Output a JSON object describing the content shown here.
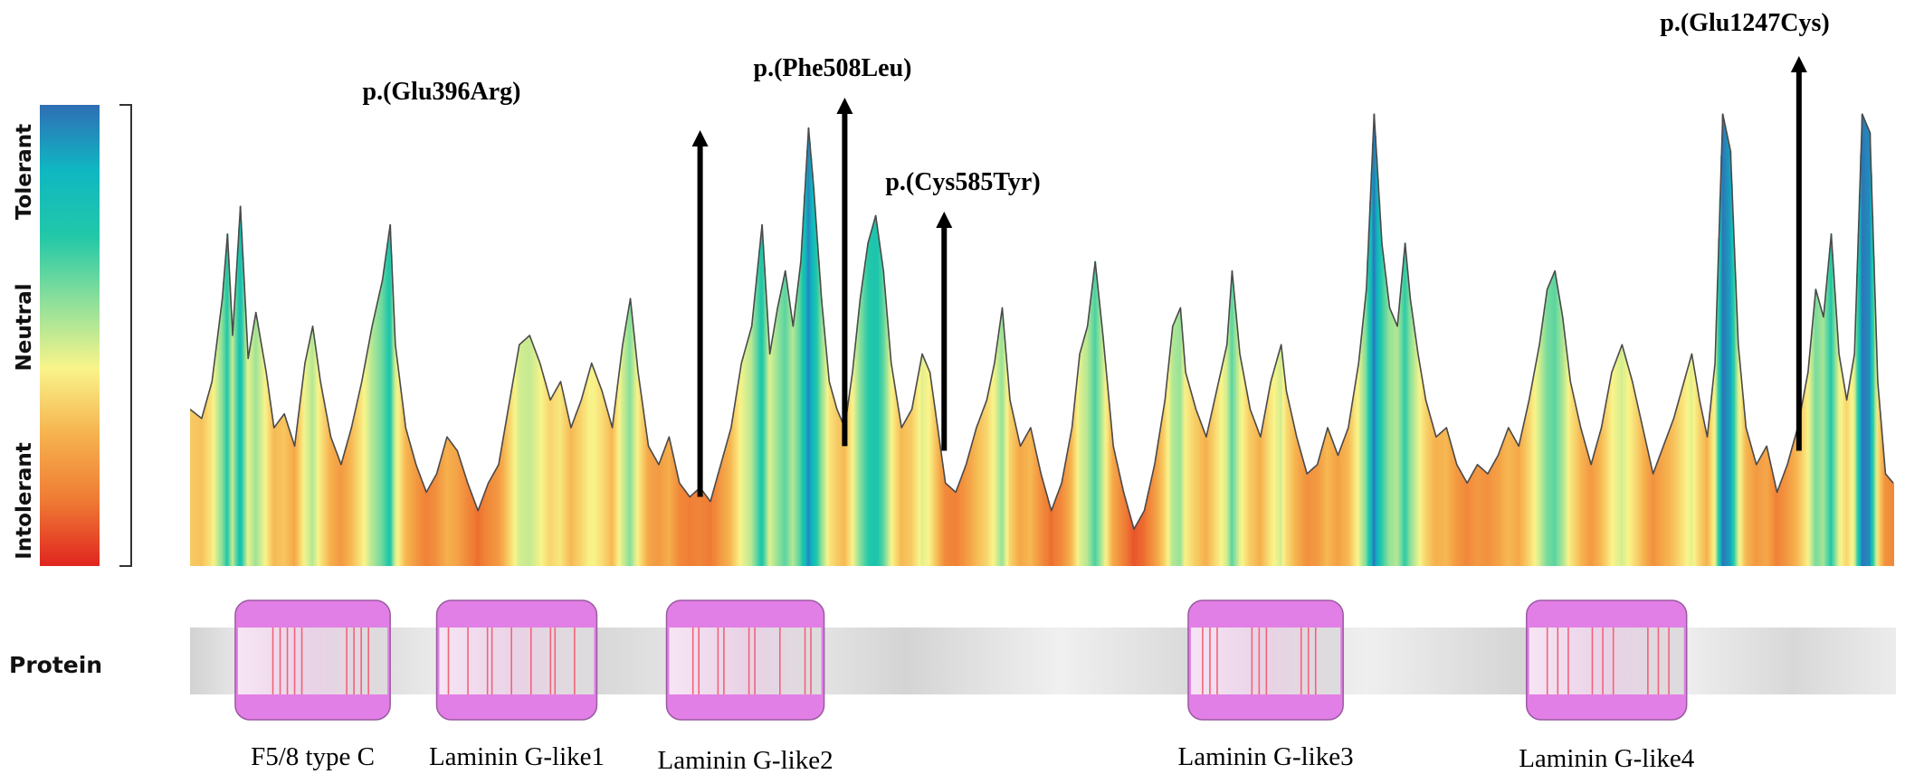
{
  "chart_data": {
    "type": "area",
    "title": "",
    "xlabel": "",
    "ylabel": "",
    "color_scale": {
      "labels": [
        "Tolerant",
        "Neutral",
        "Intolerant"
      ],
      "colors": [
        "#2f6eb5",
        "#0fb7c2",
        "#22c8a8",
        "#8fe09a",
        "#f9f48a",
        "#f6b24e",
        "#ef7b34",
        "#e0251f"
      ]
    },
    "protein_length": 1320,
    "track_label": "Protein",
    "tolerance_profile": {
      "residue_start": 1,
      "residue_end": 1320,
      "y_range": [
        0,
        1
      ],
      "points": [
        [
          1,
          0.34
        ],
        [
          10,
          0.32
        ],
        [
          18,
          0.4
        ],
        [
          26,
          0.58
        ],
        [
          30,
          0.72
        ],
        [
          34,
          0.5
        ],
        [
          40,
          0.78
        ],
        [
          46,
          0.45
        ],
        [
          52,
          0.55
        ],
        [
          60,
          0.42
        ],
        [
          66,
          0.3
        ],
        [
          74,
          0.33
        ],
        [
          82,
          0.26
        ],
        [
          90,
          0.44
        ],
        [
          96,
          0.52
        ],
        [
          102,
          0.4
        ],
        [
          110,
          0.28
        ],
        [
          118,
          0.22
        ],
        [
          126,
          0.3
        ],
        [
          134,
          0.4
        ],
        [
          142,
          0.52
        ],
        [
          150,
          0.62
        ],
        [
          156,
          0.74
        ],
        [
          160,
          0.48
        ],
        [
          168,
          0.3
        ],
        [
          176,
          0.22
        ],
        [
          184,
          0.16
        ],
        [
          192,
          0.2
        ],
        [
          200,
          0.28
        ],
        [
          208,
          0.25
        ],
        [
          216,
          0.18
        ],
        [
          224,
          0.12
        ],
        [
          232,
          0.18
        ],
        [
          240,
          0.22
        ],
        [
          248,
          0.35
        ],
        [
          256,
          0.48
        ],
        [
          264,
          0.5
        ],
        [
          272,
          0.44
        ],
        [
          280,
          0.36
        ],
        [
          288,
          0.4
        ],
        [
          296,
          0.3
        ],
        [
          304,
          0.36
        ],
        [
          312,
          0.44
        ],
        [
          320,
          0.38
        ],
        [
          328,
          0.3
        ],
        [
          336,
          0.48
        ],
        [
          342,
          0.58
        ],
        [
          348,
          0.42
        ],
        [
          356,
          0.26
        ],
        [
          364,
          0.22
        ],
        [
          372,
          0.28
        ],
        [
          380,
          0.18
        ],
        [
          388,
          0.15
        ],
        [
          396,
          0.17
        ],
        [
          404,
          0.14
        ],
        [
          412,
          0.22
        ],
        [
          420,
          0.3
        ],
        [
          428,
          0.44
        ],
        [
          436,
          0.52
        ],
        [
          444,
          0.74
        ],
        [
          450,
          0.46
        ],
        [
          456,
          0.56
        ],
        [
          462,
          0.64
        ],
        [
          468,
          0.52
        ],
        [
          474,
          0.66
        ],
        [
          480,
          0.95
        ],
        [
          484,
          0.82
        ],
        [
          490,
          0.58
        ],
        [
          496,
          0.4
        ],
        [
          502,
          0.34
        ],
        [
          508,
          0.3
        ],
        [
          514,
          0.42
        ],
        [
          520,
          0.58
        ],
        [
          526,
          0.7
        ],
        [
          532,
          0.76
        ],
        [
          538,
          0.64
        ],
        [
          544,
          0.44
        ],
        [
          552,
          0.3
        ],
        [
          560,
          0.34
        ],
        [
          568,
          0.46
        ],
        [
          574,
          0.42
        ],
        [
          580,
          0.3
        ],
        [
          586,
          0.18
        ],
        [
          594,
          0.16
        ],
        [
          602,
          0.22
        ],
        [
          610,
          0.3
        ],
        [
          618,
          0.36
        ],
        [
          624,
          0.44
        ],
        [
          630,
          0.56
        ],
        [
          636,
          0.36
        ],
        [
          644,
          0.26
        ],
        [
          652,
          0.3
        ],
        [
          660,
          0.2
        ],
        [
          668,
          0.12
        ],
        [
          676,
          0.18
        ],
        [
          684,
          0.3
        ],
        [
          690,
          0.46
        ],
        [
          696,
          0.52
        ],
        [
          702,
          0.66
        ],
        [
          708,
          0.5
        ],
        [
          716,
          0.26
        ],
        [
          724,
          0.16
        ],
        [
          732,
          0.08
        ],
        [
          740,
          0.12
        ],
        [
          748,
          0.22
        ],
        [
          756,
          0.36
        ],
        [
          762,
          0.52
        ],
        [
          768,
          0.56
        ],
        [
          772,
          0.42
        ],
        [
          780,
          0.34
        ],
        [
          788,
          0.28
        ],
        [
          796,
          0.38
        ],
        [
          804,
          0.48
        ],
        [
          808,
          0.64
        ],
        [
          814,
          0.46
        ],
        [
          822,
          0.34
        ],
        [
          830,
          0.28
        ],
        [
          838,
          0.4
        ],
        [
          846,
          0.48
        ],
        [
          850,
          0.38
        ],
        [
          858,
          0.28
        ],
        [
          866,
          0.2
        ],
        [
          874,
          0.22
        ],
        [
          882,
          0.3
        ],
        [
          890,
          0.24
        ],
        [
          898,
          0.3
        ],
        [
          906,
          0.44
        ],
        [
          912,
          0.6
        ],
        [
          918,
          0.98
        ],
        [
          924,
          0.7
        ],
        [
          930,
          0.56
        ],
        [
          936,
          0.52
        ],
        [
          942,
          0.7
        ],
        [
          946,
          0.58
        ],
        [
          952,
          0.46
        ],
        [
          958,
          0.36
        ],
        [
          966,
          0.28
        ],
        [
          974,
          0.3
        ],
        [
          982,
          0.22
        ],
        [
          990,
          0.18
        ],
        [
          998,
          0.22
        ],
        [
          1006,
          0.2
        ],
        [
          1014,
          0.24
        ],
        [
          1022,
          0.3
        ],
        [
          1030,
          0.26
        ],
        [
          1038,
          0.36
        ],
        [
          1046,
          0.48
        ],
        [
          1052,
          0.6
        ],
        [
          1058,
          0.64
        ],
        [
          1064,
          0.54
        ],
        [
          1070,
          0.4
        ],
        [
          1078,
          0.3
        ],
        [
          1086,
          0.22
        ],
        [
          1094,
          0.3
        ],
        [
          1102,
          0.42
        ],
        [
          1110,
          0.48
        ],
        [
          1118,
          0.4
        ],
        [
          1126,
          0.3
        ],
        [
          1134,
          0.2
        ],
        [
          1142,
          0.26
        ],
        [
          1150,
          0.32
        ],
        [
          1158,
          0.4
        ],
        [
          1164,
          0.46
        ],
        [
          1170,
          0.36
        ],
        [
          1176,
          0.28
        ],
        [
          1182,
          0.44
        ],
        [
          1188,
          0.98
        ],
        [
          1194,
          0.9
        ],
        [
          1200,
          0.48
        ],
        [
          1206,
          0.3
        ],
        [
          1214,
          0.22
        ],
        [
          1222,
          0.26
        ],
        [
          1230,
          0.16
        ],
        [
          1238,
          0.22
        ],
        [
          1246,
          0.3
        ],
        [
          1254,
          0.42
        ],
        [
          1260,
          0.6
        ],
        [
          1266,
          0.54
        ],
        [
          1272,
          0.72
        ],
        [
          1278,
          0.46
        ],
        [
          1284,
          0.36
        ],
        [
          1290,
          0.46
        ],
        [
          1296,
          0.98
        ],
        [
          1302,
          0.94
        ],
        [
          1308,
          0.4
        ],
        [
          1314,
          0.2
        ],
        [
          1320,
          0.18
        ]
      ]
    },
    "variants": [
      {
        "label": "p.(Glu396Arg)",
        "position": 396,
        "score": 0.15
      },
      {
        "label": "p.(Phe508Leu)",
        "position": 508,
        "score": 0.26
      },
      {
        "label": "p.(Cys585Tyr)",
        "position": 585,
        "score": 0.25
      },
      {
        "label": "p.(Glu1247Cys)",
        "position": 1247,
        "score": 0.25
      }
    ],
    "domains": [
      {
        "name": "F5/8 type C",
        "start": 36,
        "end": 156
      },
      {
        "name": "Laminin G-like1",
        "start": 192,
        "end": 316
      },
      {
        "name": "Laminin G-like2",
        "start": 370,
        "end": 492
      },
      {
        "name": "Laminin G-like3",
        "start": 774,
        "end": 894
      },
      {
        "name": "Laminin G-like4",
        "start": 1036,
        "end": 1160
      }
    ]
  }
}
